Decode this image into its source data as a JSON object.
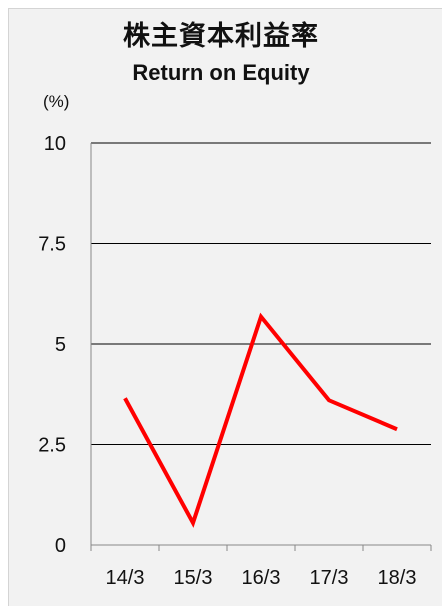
{
  "chart_data": {
    "type": "line",
    "title": "株主資本利益率",
    "subtitle": "Return on Equity",
    "unit_label": "(%)",
    "xlabel": "",
    "ylabel": "",
    "categories": [
      "14/3",
      "15/3",
      "16/3",
      "17/3",
      "18/3"
    ],
    "series": [
      {
        "values": [
          3.65,
          0.55,
          5.68,
          3.6,
          2.88
        ],
        "color": "#ff0000"
      }
    ],
    "yticks": [
      {
        "value": 0,
        "label": "0"
      },
      {
        "value": 2.5,
        "label": "2.5"
      },
      {
        "value": 5,
        "label": "5"
      },
      {
        "value": 7.5,
        "label": "7.5"
      },
      {
        "value": 10,
        "label": "10"
      }
    ],
    "ylim": [
      0,
      10
    ],
    "grid": true,
    "legend": "none"
  }
}
